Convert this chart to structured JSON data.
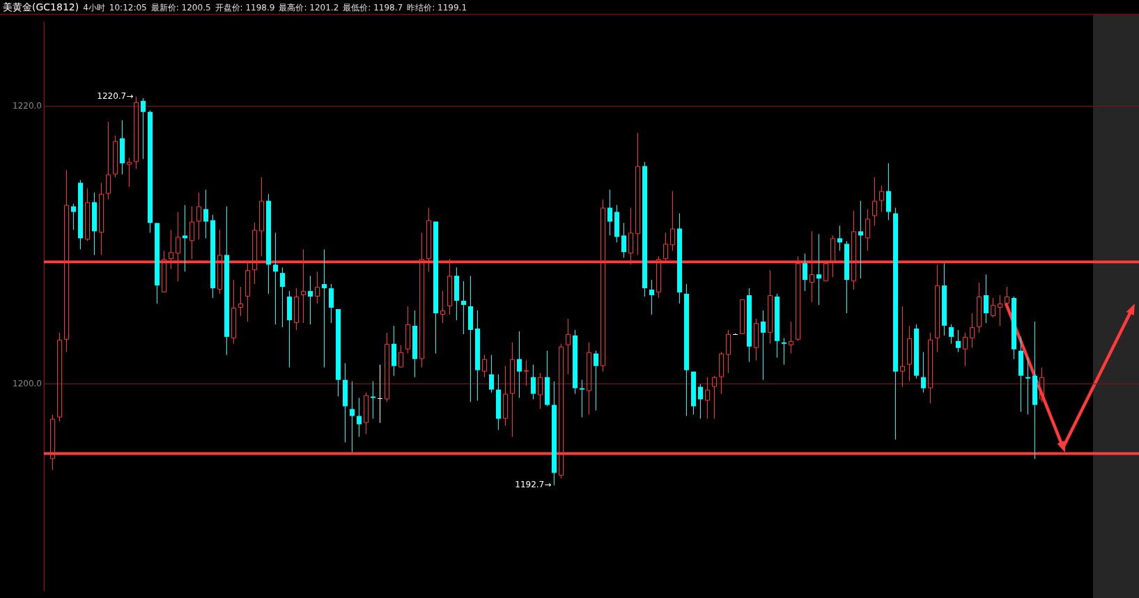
{
  "chart_data": {
    "type": "candlestick",
    "title": "美黄金(GC1812)",
    "subtitle": "4小时",
    "annotations": [
      "10:12:05",
      "最新价: 1200.5",
      "开盘价: 1198.9",
      "最高价: 1201.2",
      "最低价: 1198.7",
      "昨结价: 1199.1",
      "1220.7→",
      "1192.7→"
    ],
    "categories": [
      null,
      null,
      null,
      null,
      null,
      null,
      null,
      null,
      null,
      null,
      null,
      null,
      null,
      null,
      null,
      null,
      null,
      null,
      null,
      null,
      null,
      null,
      null,
      null,
      null,
      null,
      null,
      null,
      null,
      null,
      null,
      null,
      null,
      null,
      null,
      null,
      null,
      null,
      null,
      null,
      null,
      null,
      null,
      null,
      null,
      null,
      null,
      null,
      null,
      null,
      null,
      null,
      null,
      null,
      null,
      null,
      null,
      null,
      null,
      null,
      null,
      null,
      null,
      null,
      null,
      null,
      null,
      null,
      null,
      null,
      null,
      null,
      null,
      null,
      null,
      null,
      null,
      null,
      null,
      null,
      null,
      null,
      null,
      null,
      null,
      null,
      null,
      null,
      null,
      null,
      null,
      null,
      null,
      null,
      null,
      null,
      null,
      null,
      null,
      null,
      null,
      null,
      null,
      null,
      null,
      null,
      null,
      null,
      null,
      null,
      null,
      null,
      null,
      null,
      null,
      null,
      null,
      null,
      null,
      null,
      null,
      null,
      null,
      null,
      null,
      null,
      null,
      null,
      null,
      null,
      null,
      null,
      null,
      null,
      null,
      null,
      null,
      null,
      null,
      null,
      null,
      null,
      null
    ],
    "ohlc": [
      [
        1194.6,
        1197.8,
        1193.8,
        1197.5
      ],
      [
        1197.6,
        1203.7,
        1197.3,
        1203.2
      ],
      [
        1203.2,
        1215.4,
        1202.3,
        1212.9
      ],
      [
        1212.8,
        1213.0,
        1211.1,
        1212.4
      ],
      [
        1214.5,
        1214.7,
        1209.7,
        1210.5
      ],
      [
        1210.4,
        1214.1,
        1210.3,
        1213.1
      ],
      [
        1213.1,
        1213.8,
        1209.3,
        1211.0
      ],
      [
        1210.9,
        1214.5,
        1209.3,
        1213.7
      ],
      [
        1213.7,
        1218.9,
        1213.3,
        1215.1
      ],
      [
        1215.1,
        1217.9,
        1214.9,
        1217.5
      ],
      [
        1217.7,
        1219.0,
        1215.1,
        1215.9
      ],
      [
        1215.8,
        1216.3,
        1214.2,
        1216.0
      ],
      [
        1216.0,
        1220.7,
        1215.5,
        1220.3
      ],
      [
        1220.4,
        1220.6,
        1216.2,
        1219.6
      ],
      [
        1219.6,
        1219.7,
        1210.9,
        1211.6
      ],
      [
        1211.6,
        1211.6,
        1205.8,
        1207.1
      ],
      [
        1206.6,
        1209.6,
        1206.6,
        1209.0
      ],
      [
        1209.0,
        1211.1,
        1208.3,
        1209.5
      ],
      [
        1209.4,
        1212.4,
        1207.4,
        1210.6
      ],
      [
        1210.7,
        1212.9,
        1208.1,
        1210.5
      ],
      [
        1210.3,
        1212.8,
        1209.0,
        1211.7
      ],
      [
        1211.7,
        1213.8,
        1210.4,
        1212.8
      ],
      [
        1212.6,
        1214.0,
        1210.5,
        1211.7
      ],
      [
        1211.8,
        1212.2,
        1206.2,
        1206.9
      ],
      [
        1206.8,
        1211.1,
        1206.5,
        1209.3
      ],
      [
        1209.3,
        1212.8,
        1202.1,
        1203.4
      ],
      [
        1203.3,
        1207.5,
        1202.9,
        1205.5
      ],
      [
        1205.5,
        1207.0,
        1204.9,
        1205.8
      ],
      [
        1206.3,
        1208.8,
        1204.5,
        1208.2
      ],
      [
        1208.2,
        1211.6,
        1207.2,
        1211.1
      ],
      [
        1211.0,
        1214.9,
        1209.2,
        1213.2
      ],
      [
        1213.2,
        1213.7,
        1206.5,
        1208.6
      ],
      [
        1208.6,
        1210.9,
        1204.3,
        1208.1
      ],
      [
        1208.0,
        1208.4,
        1204.1,
        1207.0
      ],
      [
        1206.3,
        1206.7,
        1201.2,
        1204.6
      ],
      [
        1204.4,
        1206.9,
        1203.9,
        1206.3
      ],
      [
        1206.4,
        1209.7,
        1204.4,
        1206.7
      ],
      [
        1206.7,
        1207.8,
        1204.3,
        1206.3
      ],
      [
        1206.3,
        1208.1,
        1205.8,
        1207.0
      ],
      [
        1207.2,
        1209.7,
        1201.2,
        1206.9
      ],
      [
        1206.9,
        1207.2,
        1204.4,
        1205.5
      ],
      [
        1205.4,
        1205.4,
        1199.1,
        1200.3
      ],
      [
        1200.3,
        1201.5,
        1195.8,
        1198.4
      ],
      [
        1198.2,
        1200.2,
        1195.1,
        1197.7
      ],
      [
        1197.7,
        1199.0,
        1196.2,
        1197.1
      ],
      [
        1197.2,
        1199.4,
        1196.4,
        1199.2
      ],
      [
        1199.1,
        1200.2,
        1197.5,
        1199.0
      ],
      [
        1199.0,
        1201.4,
        1197.2,
        1199.0
      ],
      [
        1198.9,
        1203.7,
        1198.7,
        1202.9
      ],
      [
        1202.9,
        1204.2,
        1200.6,
        1201.3
      ],
      [
        1201.2,
        1202.8,
        1201.2,
        1202.3
      ],
      [
        1202.5,
        1205.6,
        1202.2,
        1204.3
      ],
      [
        1204.2,
        1205.3,
        1200.5,
        1201.8
      ],
      [
        1201.8,
        1210.9,
        1201.2,
        1209.0
      ],
      [
        1209.0,
        1212.7,
        1208.1,
        1211.8
      ],
      [
        1211.7,
        1211.7,
        1202.2,
        1205.1
      ],
      [
        1205.0,
        1206.7,
        1204.4,
        1205.3
      ],
      [
        1205.6,
        1209.0,
        1205.0,
        1207.8
      ],
      [
        1207.8,
        1208.4,
        1204.6,
        1206.0
      ],
      [
        1206.0,
        1207.4,
        1203.6,
        1205.7
      ],
      [
        1205.6,
        1207.8,
        1198.7,
        1203.9
      ],
      [
        1204.0,
        1205.3,
        1198.8,
        1201.0
      ],
      [
        1200.9,
        1202.1,
        1200.5,
        1201.8
      ],
      [
        1200.7,
        1202.1,
        1199.4,
        1199.6
      ],
      [
        1199.6,
        1200.7,
        1196.7,
        1197.5
      ],
      [
        1197.5,
        1201.3,
        1197.0,
        1199.3
      ],
      [
        1199.3,
        1203.0,
        1196.2,
        1201.8
      ],
      [
        1201.8,
        1203.8,
        1199.0,
        1200.9
      ],
      [
        1200.9,
        1201.7,
        1199.9,
        1201.0
      ],
      [
        1200.5,
        1201.4,
        1198.9,
        1199.3
      ],
      [
        1199.2,
        1200.8,
        1198.2,
        1200.5
      ],
      [
        1200.5,
        1202.4,
        1198.4,
        1198.5
      ],
      [
        1198.5,
        1200.2,
        1192.7,
        1193.6
      ],
      [
        1193.4,
        1202.9,
        1193.2,
        1202.7
      ],
      [
        1202.8,
        1204.7,
        1200.7,
        1203.6
      ],
      [
        1203.5,
        1203.9,
        1199.3,
        1199.7
      ],
      [
        1199.7,
        1200.3,
        1197.6,
        1199.6
      ],
      [
        1199.5,
        1203.0,
        1197.8,
        1202.3
      ],
      [
        1202.2,
        1202.4,
        1198.1,
        1201.3
      ],
      [
        1201.3,
        1213.3,
        1200.9,
        1212.7
      ],
      [
        1212.7,
        1214.0,
        1210.7,
        1211.7
      ],
      [
        1212.4,
        1212.9,
        1210.2,
        1210.6
      ],
      [
        1210.7,
        1211.6,
        1209.1,
        1209.5
      ],
      [
        1209.4,
        1212.7,
        1208.6,
        1210.9
      ],
      [
        1210.8,
        1218.1,
        1209.3,
        1215.7
      ],
      [
        1215.7,
        1216.0,
        1206.3,
        1206.9
      ],
      [
        1206.8,
        1207.5,
        1205.0,
        1206.4
      ],
      [
        1206.6,
        1209.2,
        1206.2,
        1209.0
      ],
      [
        1209.0,
        1210.9,
        1208.8,
        1210.1
      ],
      [
        1210.0,
        1213.9,
        1209.6,
        1211.2
      ],
      [
        1211.2,
        1212.3,
        1205.8,
        1206.6
      ],
      [
        1206.5,
        1207.2,
        1197.7,
        1201.0
      ],
      [
        1200.9,
        1200.9,
        1197.8,
        1198.4
      ],
      [
        1199.8,
        1200.0,
        1197.5,
        1198.9
      ],
      [
        1198.8,
        1200.5,
        1197.5,
        1199.6
      ],
      [
        1199.8,
        1200.6,
        1197.5,
        1200.5
      ],
      [
        1200.5,
        1202.3,
        1199.3,
        1202.2
      ],
      [
        1202.1,
        1203.9,
        1200.8,
        1203.6
      ],
      [
        1203.6,
        1203.6,
        1203.6,
        1203.6
      ],
      [
        1203.6,
        1206.1,
        1203.6,
        1206.1
      ],
      [
        1206.4,
        1206.9,
        1201.6,
        1202.7
      ],
      [
        1202.6,
        1204.7,
        1201.7,
        1204.4
      ],
      [
        1204.5,
        1205.3,
        1200.3,
        1203.7
      ],
      [
        1203.7,
        1208.2,
        1202.9,
        1206.4
      ],
      [
        1206.3,
        1206.5,
        1201.9,
        1203.1
      ],
      [
        1203.0,
        1203.3,
        1201.4,
        1202.9
      ],
      [
        1202.8,
        1204.5,
        1202.2,
        1203.1
      ],
      [
        1203.2,
        1209.2,
        1203.1,
        1208.7
      ],
      [
        1208.7,
        1209.4,
        1206.7,
        1207.5
      ],
      [
        1207.3,
        1211.0,
        1205.9,
        1207.9
      ],
      [
        1207.9,
        1210.8,
        1205.7,
        1207.6
      ],
      [
        1207.4,
        1208.9,
        1207.4,
        1208.7
      ],
      [
        1208.8,
        1210.7,
        1207.7,
        1210.5
      ],
      [
        1210.5,
        1211.4,
        1209.6,
        1210.2
      ],
      [
        1210.1,
        1210.3,
        1205.1,
        1207.5
      ],
      [
        1207.4,
        1212.5,
        1206.8,
        1211.0
      ],
      [
        1211.0,
        1213.2,
        1207.6,
        1210.7
      ],
      [
        1210.5,
        1212.6,
        1209.6,
        1211.9
      ],
      [
        1212.1,
        1214.9,
        1211.4,
        1213.2
      ],
      [
        1213.2,
        1214.3,
        1212.4,
        1213.9
      ],
      [
        1213.9,
        1215.9,
        1211.8,
        1212.4
      ],
      [
        1212.3,
        1212.7,
        1196.0,
        1200.9
      ],
      [
        1200.9,
        1205.6,
        1199.8,
        1201.3
      ],
      [
        1201.4,
        1204.2,
        1200.2,
        1203.3
      ],
      [
        1204.0,
        1204.3,
        1200.4,
        1200.6
      ],
      [
        1200.5,
        1202.3,
        1199.4,
        1199.7
      ],
      [
        1199.7,
        1203.7,
        1198.6,
        1203.2
      ],
      [
        1203.3,
        1208.6,
        1202.3,
        1207.1
      ],
      [
        1207.1,
        1208.7,
        1203.5,
        1204.2
      ],
      [
        1204.1,
        1204.3,
        1202.9,
        1203.4
      ],
      [
        1203.1,
        1203.9,
        1202.3,
        1202.6
      ],
      [
        1202.5,
        1203.7,
        1201.3,
        1203.4
      ],
      [
        1203.3,
        1205.1,
        1202.6,
        1204.1
      ],
      [
        1204.1,
        1207.3,
        1203.7,
        1206.3
      ],
      [
        1206.4,
        1207.9,
        1204.4,
        1205.1
      ],
      [
        1204.9,
        1206.2,
        1204.8,
        1205.7
      ],
      [
        1205.5,
        1206.4,
        1204.2,
        1205.8
      ],
      [
        1205.8,
        1207.0,
        1205.5,
        1206.3
      ],
      [
        1206.2,
        1206.3,
        1201.8,
        1202.5
      ],
      [
        1202.4,
        1203.4,
        1198.0,
        1200.6
      ],
      [
        1200.5,
        1201.9,
        1197.8,
        1200.4
      ],
      [
        1200.6,
        1204.5,
        1194.6,
        1198.5
      ],
      [
        1198.9,
        1201.2,
        1198.7,
        1200.5
      ]
    ],
    "colors": [
      "#ff3232",
      "#ff3232",
      "#ff3232",
      "#00ffff",
      "#00ffff",
      "#ff3232",
      "#00ffff",
      "#ff3232",
      "#ff3232",
      "#ff3232",
      "#00ffff",
      "#ff3232",
      "#ff3232",
      "#00ffff",
      "#00ffff",
      "#00ffff",
      "#ff3232",
      "#ff3232",
      "#ff3232",
      "#00ffff",
      "#ff3232",
      "#ff3232",
      "#00ffff",
      "#00ffff",
      "#ff3232",
      "#00ffff",
      "#ff3232",
      "#ff3232",
      "#ff3232",
      "#ff3232",
      "#ff3232",
      "#00ffff",
      "#00ffff",
      "#00ffff",
      "#00ffff",
      "#ff3232",
      "#ff3232",
      "#00ffff",
      "#ff3232",
      "#00ffff",
      "#00ffff",
      "#00ffff",
      "#00ffff",
      "#00ffff",
      "#00ffff",
      "#ff3232",
      "#00ffff",
      "#ffffff",
      "#ff3232",
      "#00ffff",
      "#ff3232",
      "#ff3232",
      "#00ffff",
      "#ff3232",
      "#ff3232",
      "#00ffff",
      "#ff3232",
      "#ff3232",
      "#00ffff",
      "#00ffff",
      "#00ffff",
      "#00ffff",
      "#ff3232",
      "#00ffff",
      "#00ffff",
      "#ff3232",
      "#ff3232",
      "#00ffff",
      "#ff3232",
      "#00ffff",
      "#ff3232",
      "#00ffff",
      "#00ffff",
      "#ff3232",
      "#ff3232",
      "#00ffff",
      "#00ffff",
      "#ff3232",
      "#00ffff",
      "#ff3232",
      "#00ffff",
      "#00ffff",
      "#00ffff",
      "#ff3232",
      "#ff3232",
      "#00ffff",
      "#00ffff",
      "#ff3232",
      "#ff3232",
      "#ff3232",
      "#00ffff",
      "#00ffff",
      "#00ffff",
      "#00ffff",
      "#ff3232",
      "#ff3232",
      "#ff3232",
      "#ff3232",
      "#ffffff",
      "#ff3232",
      "#00ffff",
      "#ff3232",
      "#00ffff",
      "#ff3232",
      "#00ffff",
      "#00ffff",
      "#ff3232",
      "#ff3232",
      "#00ffff",
      "#ff3232",
      "#00ffff",
      "#ff3232",
      "#ff3232",
      "#00ffff",
      "#00ffff",
      "#ff3232",
      "#00ffff",
      "#ff3232",
      "#ff3232",
      "#ff3232",
      "#00ffff",
      "#00ffff",
      "#ff3232",
      "#ff3232",
      "#00ffff",
      "#00ffff",
      "#ff3232",
      "#ff3232",
      "#00ffff",
      "#00ffff",
      "#00ffff",
      "#ff3232",
      "#ff3232",
      "#ff3232",
      "#00ffff",
      "#ff3232",
      "#ff3232",
      "#ff3232",
      "#00ffff",
      "#00ffff",
      "#00ffff",
      "#00ffff",
      "#ff3232"
    ],
    "ylim": [
      1185.1,
      1226.1
    ],
    "yticks": [
      {
        "value": 1200,
        "label": "1200.0"
      },
      {
        "value": 1220,
        "label": "1220.0"
      }
    ],
    "grid": "y",
    "tick_labels": "y",
    "ref_lines": [
      {
        "axis": "y",
        "value": 1195.0,
        "color": "#ff3b3b"
      },
      {
        "axis": "y",
        "value": 1208.8,
        "color": "#ff3b3b"
      }
    ]
  }
}
